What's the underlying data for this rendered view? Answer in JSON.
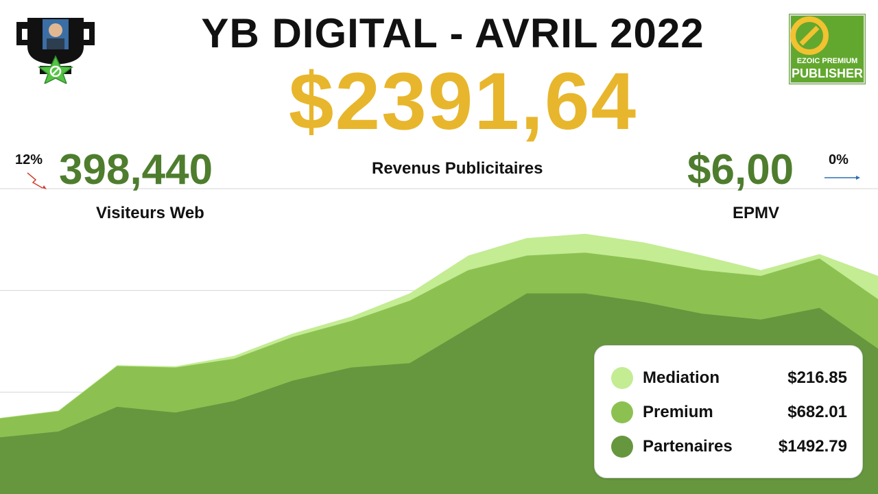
{
  "header": {
    "title": "YB DIGITAL - AVRIL 2022",
    "total": "$2391,64",
    "subtitle": "Revenus Publicitaires"
  },
  "visitors": {
    "value": "398,440",
    "label": "Visiteurs Web",
    "change": "12%"
  },
  "epmv": {
    "value": "$6,00",
    "label": "EPMV",
    "change": "0%"
  },
  "badge": {
    "line1": "EZOIC PREMIUM",
    "line2": "PUBLISHER"
  },
  "icons": {
    "trophy": "trophy-icon",
    "badge": "ezoic-logo-icon",
    "trend_down": "trend-down-arrow-icon",
    "trend_flat": "trend-flat-arrow-icon"
  },
  "colors": {
    "mediation": "#c3ec93",
    "premium": "#8cc152",
    "partenaires": "#66973e",
    "total": "#e8b62c",
    "green_text": "#4e7d2e"
  },
  "chart_data": {
    "type": "area",
    "stacked": true,
    "ylim": [
      0,
      105
    ],
    "grid": true,
    "legend_position": "bottom-right",
    "x": [
      1,
      2,
      3,
      4,
      5,
      6,
      7,
      8,
      9,
      10,
      11,
      12,
      13,
      14,
      15,
      16
    ],
    "series": [
      {
        "name": "Partenaires",
        "value_label": "$1492.79",
        "color": "#66973e",
        "values": [
          19.5,
          21.5,
          30,
          28,
          32,
          39,
          43.5,
          45,
          57,
          69,
          69,
          66,
          62,
          60,
          64,
          50
        ]
      },
      {
        "name": "Premium",
        "value_label": "$682.01",
        "color": "#8cc152",
        "values": [
          6.5,
          7,
          14,
          15.5,
          14.5,
          15,
          16,
          21.5,
          20,
          13,
          14,
          14.5,
          15,
          15,
          17,
          17
        ]
      },
      {
        "name": "Mediation",
        "value_label": "$216.85",
        "color": "#c3ec93",
        "values": [
          0.2,
          0.2,
          0.3,
          0.4,
          1,
          1.2,
          1.5,
          2.5,
          5,
          6,
          6.5,
          6,
          5,
          2,
          1.5,
          8
        ]
      }
    ]
  }
}
